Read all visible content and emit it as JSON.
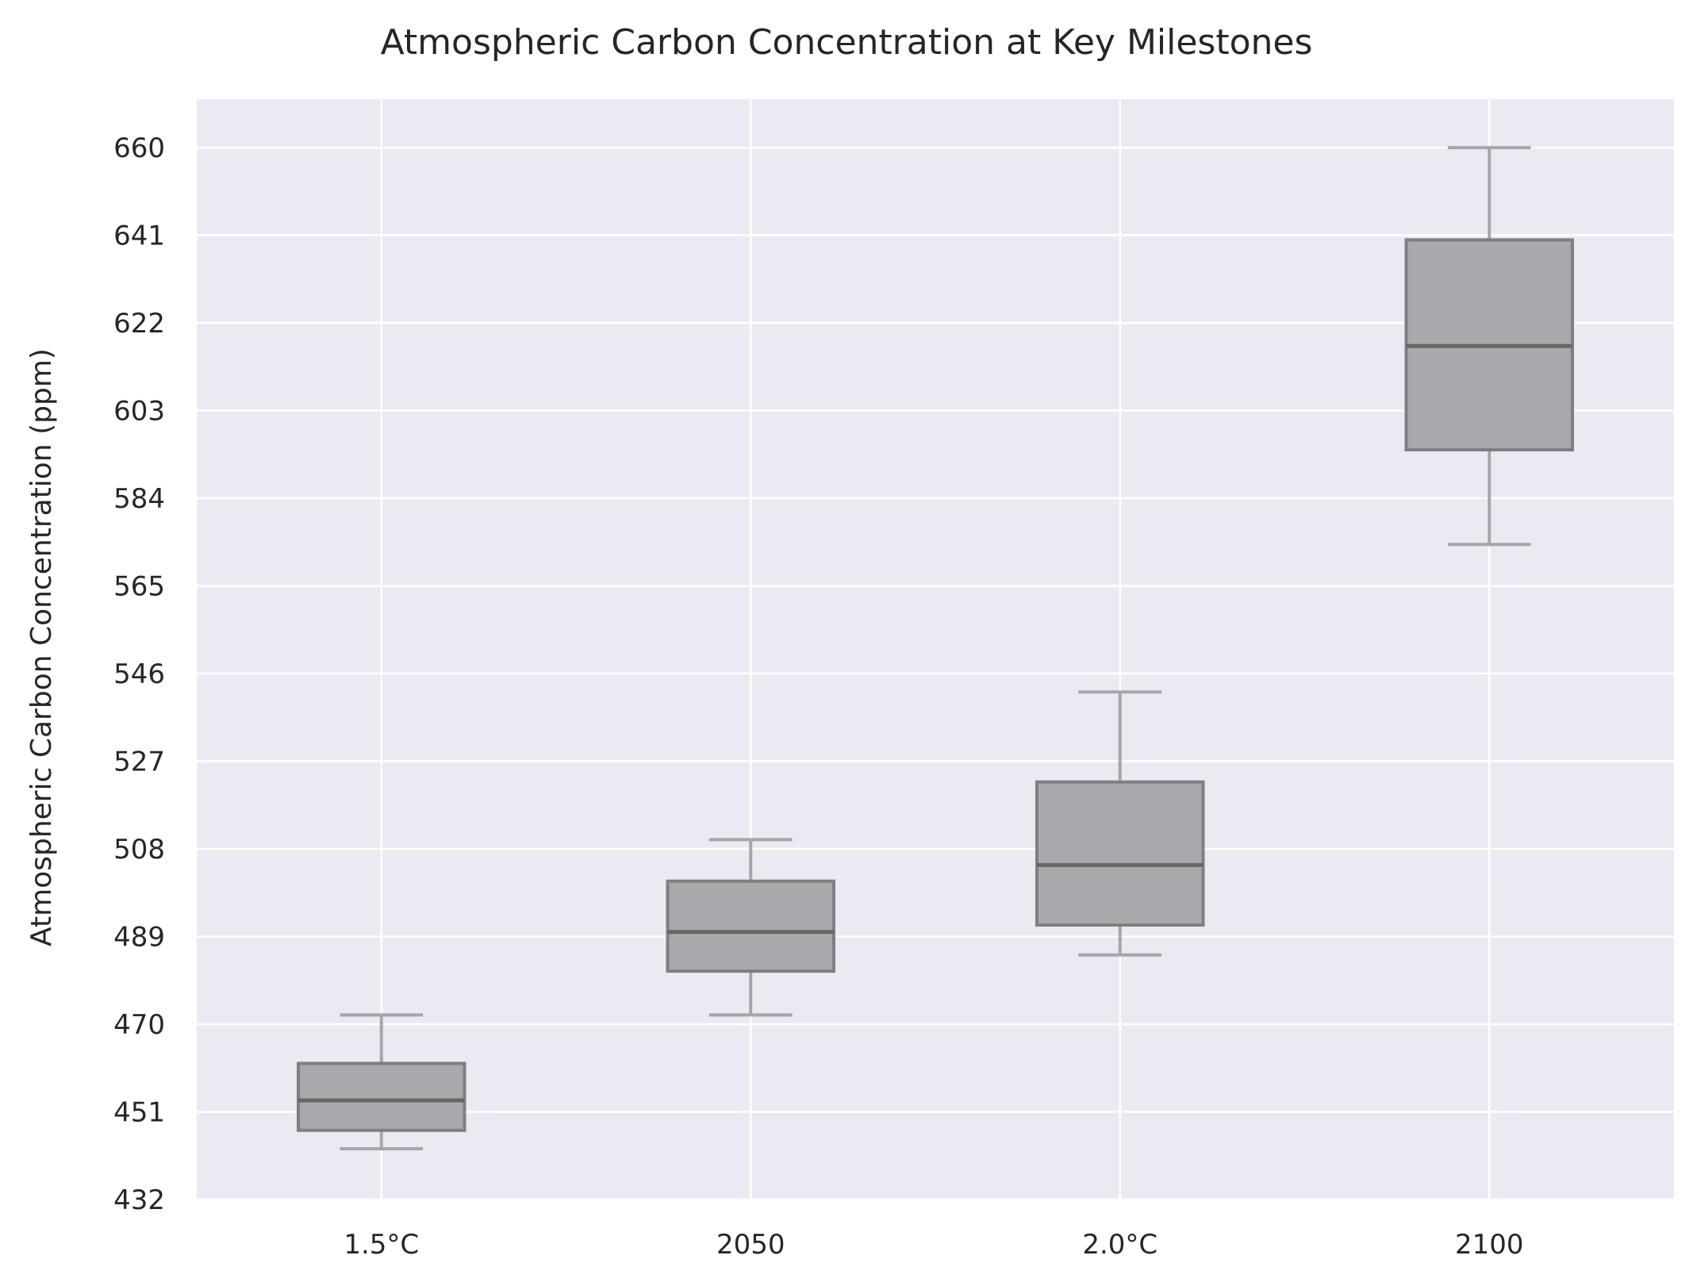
{
  "chart_data": {
    "type": "box",
    "title": "Atmospheric Carbon Concentration at Key Milestones",
    "xlabel": "",
    "ylabel": "Atmospheric Carbon Concentration (ppm)",
    "categories": [
      "1.5°C",
      "2050",
      "2.0°C",
      "2100"
    ],
    "yticks": [
      432,
      451,
      470,
      489,
      508,
      527,
      546,
      565,
      584,
      603,
      622,
      641,
      660
    ],
    "ylim": [
      432,
      670.5
    ],
    "boxes": [
      {
        "category": "1.5°C",
        "whisker_low": 443,
        "q1": 447,
        "median": 453.5,
        "q3": 461.5,
        "whisker_high": 472
      },
      {
        "category": "2050",
        "whisker_low": 472,
        "q1": 481.5,
        "median": 490,
        "q3": 501,
        "whisker_high": 510
      },
      {
        "category": "2.0°C",
        "whisker_low": 485,
        "q1": 491.5,
        "median": 504.5,
        "q3": 522.5,
        "whisker_high": 542
      },
      {
        "category": "2100",
        "whisker_low": 574,
        "q1": 594.5,
        "median": 617,
        "q3": 640,
        "whisker_high": 660
      }
    ],
    "grid": true,
    "legend": "none",
    "colors": {
      "background": "#eaeaf2",
      "grid": "#ffffff",
      "box_fill": "#a9a9ad",
      "box_edge": "#7f7f7f",
      "median": "#666666",
      "whisker": "#a6a6a6",
      "text": "#262626"
    }
  }
}
